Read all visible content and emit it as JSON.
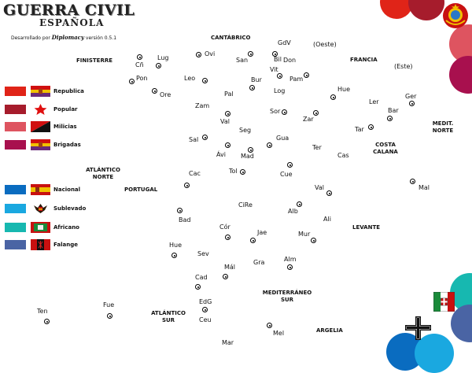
{
  "title": {
    "main": "GUERRA CIVIL",
    "sub": "ESPAÑOLA",
    "credit_prefix": "Desarrollado por",
    "credit_brand": "Diplomacy",
    "credit_version": "versión  0.5.1"
  },
  "legend": {
    "republican": [
      {
        "label": "Republica",
        "color": "#e02418",
        "icon": "republic-flag-icon"
      },
      {
        "label": "Popular",
        "color": "#a61c2c",
        "icon": "red-star-icon"
      },
      {
        "label": "Milicias",
        "color": "#de5460",
        "icon": "anarchist-flag-icon"
      },
      {
        "label": "Brigadas",
        "color": "#a8104e",
        "icon": "republic-flag-icon"
      }
    ],
    "nationalist": [
      {
        "label": "Nacional",
        "color": "#0a6cc0",
        "icon": "nationalist-flag-icon"
      },
      {
        "label": "Sublevado",
        "color": "#1aa8e0",
        "icon": "eagle-emblem-icon"
      },
      {
        "label": "Africano",
        "color": "#17b8b0",
        "icon": "moroccan-flag-icon"
      },
      {
        "label": "Falange",
        "color": "#4a64a4",
        "icon": "falange-flag-icon"
      }
    ]
  },
  "regions": [
    {
      "name": "Lug"
    },
    {
      "name": "Cñ"
    },
    {
      "name": "Pon"
    },
    {
      "name": "Ore"
    },
    {
      "name": "Ovi"
    },
    {
      "name": "San"
    },
    {
      "name": "Bil"
    },
    {
      "name": "GdV"
    },
    {
      "name": "Vit"
    },
    {
      "name": "Don"
    },
    {
      "name": "Pam"
    },
    {
      "name": "Leo"
    },
    {
      "name": "Bur"
    },
    {
      "name": "Log"
    },
    {
      "name": "Pal"
    },
    {
      "name": "Hue"
    },
    {
      "name": "Ler"
    },
    {
      "name": "Ger"
    },
    {
      "name": "Bar"
    },
    {
      "name": "Zar"
    },
    {
      "name": "Sor"
    },
    {
      "name": "Zam"
    },
    {
      "name": "Val"
    },
    {
      "name": "Seg"
    },
    {
      "name": "Sal"
    },
    {
      "name": "Ávi"
    },
    {
      "name": "Mad"
    },
    {
      "name": "Gua"
    },
    {
      "name": "Ter"
    },
    {
      "name": "Tar"
    },
    {
      "name": "Cas"
    },
    {
      "name": "Cac"
    },
    {
      "name": "Tol"
    },
    {
      "name": "Cue"
    },
    {
      "name": "Val"
    },
    {
      "name": "CiRe"
    },
    {
      "name": "Alb"
    },
    {
      "name": "Ali"
    },
    {
      "name": "Bad"
    },
    {
      "name": "Cór"
    },
    {
      "name": "Jae"
    },
    {
      "name": "Mur"
    },
    {
      "name": "Hue"
    },
    {
      "name": "Sev"
    },
    {
      "name": "Mál"
    },
    {
      "name": "Gra"
    },
    {
      "name": "Alm"
    },
    {
      "name": "Cad"
    },
    {
      "name": "EdG"
    },
    {
      "name": "Ceu"
    },
    {
      "name": "Mel"
    },
    {
      "name": "Mar"
    },
    {
      "name": "Fue"
    },
    {
      "name": "Ten"
    },
    {
      "name": "Mal"
    }
  ],
  "sea_labels": [
    "CANTÁBRICO",
    "(Oeste)",
    "FRANCIA",
    "(Este)",
    "FINISTERRE",
    "MEDIT. NORTE",
    "COSTA CALANA",
    "ATLÁNTICO NORTE",
    "PORTUGAL",
    "LEVANTE",
    "MEDITERRÁNEO SUR",
    "ATLÁNTICO SUR",
    "ARGELIA"
  ],
  "powers": {
    "top": [
      {
        "color": "#e02418"
      },
      {
        "color": "#a61c2c"
      },
      {
        "color": "#de5460"
      },
      {
        "color": "#a8104e"
      }
    ],
    "bottom": [
      {
        "color": "#17b8b0"
      },
      {
        "color": "#4a64a4"
      },
      {
        "color": "#0a6cc0"
      },
      {
        "color": "#1aa8e0"
      }
    ],
    "emblems": [
      "soviet-emblem-icon",
      "italian-flag-icon",
      "iron-cross-icon"
    ]
  }
}
